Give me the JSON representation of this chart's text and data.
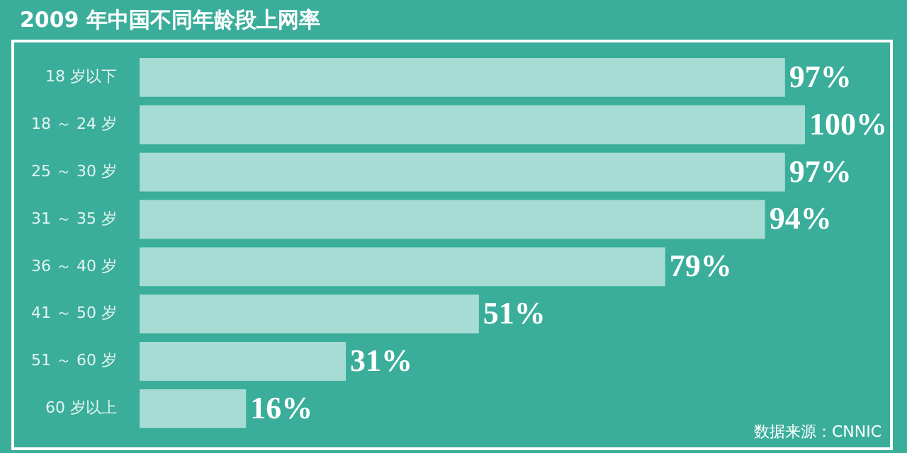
{
  "chart_data": {
    "type": "bar",
    "orientation": "horizontal",
    "title": "2009 年中国不同年龄段上网率",
    "categories": [
      "18 岁以下",
      "18 ～ 24 岁",
      "25 ～ 30 岁",
      "31 ～ 35 岁",
      "36 ～ 40 岁",
      "41 ～ 50 岁",
      "51 ～ 60 岁",
      "60 岁以上"
    ],
    "values": [
      97,
      100,
      97,
      94,
      79,
      51,
      31,
      16
    ],
    "value_labels": [
      "97%",
      "100%",
      "97%",
      "94%",
      "79%",
      "51%",
      "31%",
      "16%"
    ],
    "color": "#a6dcd3",
    "xlim": [
      0,
      100
    ],
    "legend": false,
    "tick_labels": "y",
    "annotations": [
      "数据来源：CNNIC"
    ]
  }
}
